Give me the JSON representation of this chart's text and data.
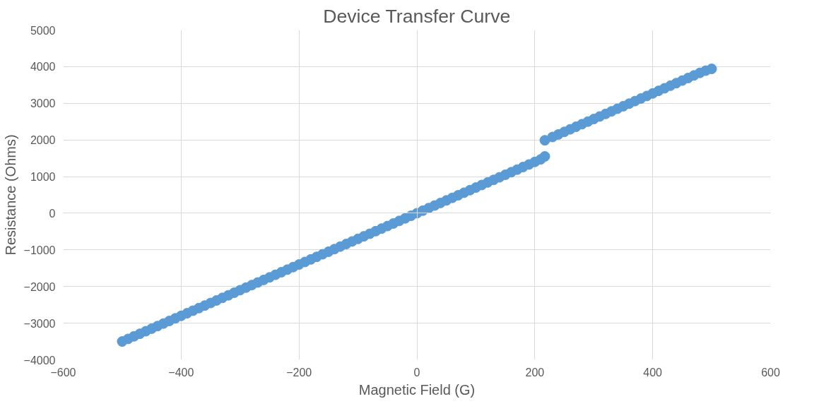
{
  "chart_data": {
    "type": "scatter",
    "title": "Device Transfer Curve",
    "xlabel": "Magnetic Field (G)",
    "ylabel": "Resistance (Ohms)",
    "x": [
      -500,
      -490,
      -480,
      -470,
      -460,
      -450,
      -440,
      -430,
      -420,
      -410,
      -400,
      -390,
      -380,
      -370,
      -360,
      -350,
      -340,
      -330,
      -320,
      -310,
      -300,
      -290,
      -280,
      -270,
      -260,
      -250,
      -240,
      -230,
      -220,
      -210,
      -200,
      -190,
      -180,
      -170,
      -160,
      -150,
      -140,
      -130,
      -120,
      -110,
      -100,
      -90,
      -80,
      -70,
      -60,
      -50,
      -40,
      -30,
      -20,
      -10,
      0,
      10,
      20,
      30,
      40,
      50,
      60,
      70,
      80,
      90,
      100,
      110,
      120,
      130,
      140,
      150,
      160,
      170,
      180,
      190,
      200,
      210,
      217,
      217,
      230,
      240,
      250,
      260,
      270,
      280,
      290,
      300,
      310,
      320,
      330,
      340,
      350,
      360,
      370,
      380,
      390,
      400,
      410,
      420,
      430,
      440,
      450,
      460,
      470,
      480,
      490,
      500
    ],
    "series": [
      {
        "color": "#5b9bd5",
        "values": [
          -3500,
          -3430,
          -3360,
          -3290,
          -3220,
          -3150,
          -3080,
          -3010,
          -2940,
          -2870,
          -2800,
          -2730,
          -2660,
          -2590,
          -2520,
          -2450,
          -2380,
          -2310,
          -2240,
          -2170,
          -2100,
          -2030,
          -1960,
          -1890,
          -1820,
          -1750,
          -1680,
          -1610,
          -1540,
          -1470,
          -1400,
          -1330,
          -1260,
          -1190,
          -1120,
          -1050,
          -980,
          -910,
          -840,
          -770,
          -700,
          -630,
          -560,
          -490,
          -420,
          -350,
          -280,
          -210,
          -140,
          -70,
          0,
          70,
          140,
          210,
          280,
          350,
          420,
          490,
          560,
          630,
          700,
          770,
          840,
          910,
          980,
          1050,
          1120,
          1190,
          1260,
          1330,
          1400,
          1470,
          1550,
          1990,
          2080,
          2150,
          2220,
          2290,
          2360,
          2430,
          2500,
          2570,
          2640,
          2710,
          2780,
          2850,
          2920,
          2990,
          3060,
          3130,
          3200,
          3270,
          3340,
          3410,
          3480,
          3550,
          3620,
          3690,
          3760,
          3830,
          3890,
          3940
        ]
      }
    ],
    "xlim": [
      -600,
      600
    ],
    "xticks": [
      -600,
      -400,
      -200,
      0,
      200,
      400,
      600
    ],
    "ylim": [
      -4000,
      5000
    ],
    "yticks": [
      -4000,
      -3000,
      -2000,
      -1000,
      0,
      1000,
      2000,
      3000,
      4000,
      5000
    ],
    "grid": true,
    "marker": "circle"
  }
}
